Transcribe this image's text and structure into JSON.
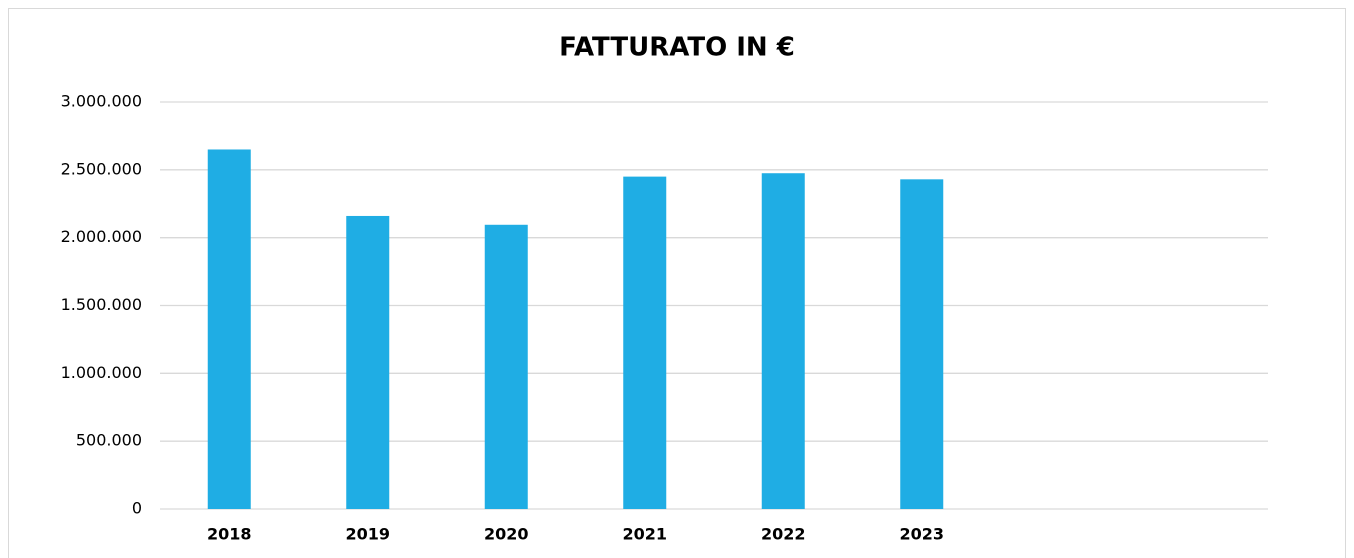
{
  "chart_data": {
    "type": "bar",
    "title": "FATTURATO IN €",
    "categories": [
      "2018",
      "2019",
      "2020",
      "2021",
      "2022",
      "2023",
      null,
      null
    ],
    "values": [
      2650000,
      2160000,
      2095000,
      2450000,
      2475000,
      2430000,
      null,
      null
    ],
    "color": "#1fade4",
    "ylim": [
      0,
      3000000
    ],
    "yticks": [
      0,
      {
        "value": 500000,
        "label": "500.000"
      },
      {
        "value": 1000000,
        "label": "1.000.000"
      },
      {
        "value": 1500000,
        "label": "1.500.000"
      },
      {
        "value": 2000000,
        "label": "2.000.000"
      },
      {
        "value": 2500000,
        "label": "2.500.000"
      },
      {
        "value": 3000000,
        "label": "3.000.000"
      }
    ],
    "grid": true
  }
}
